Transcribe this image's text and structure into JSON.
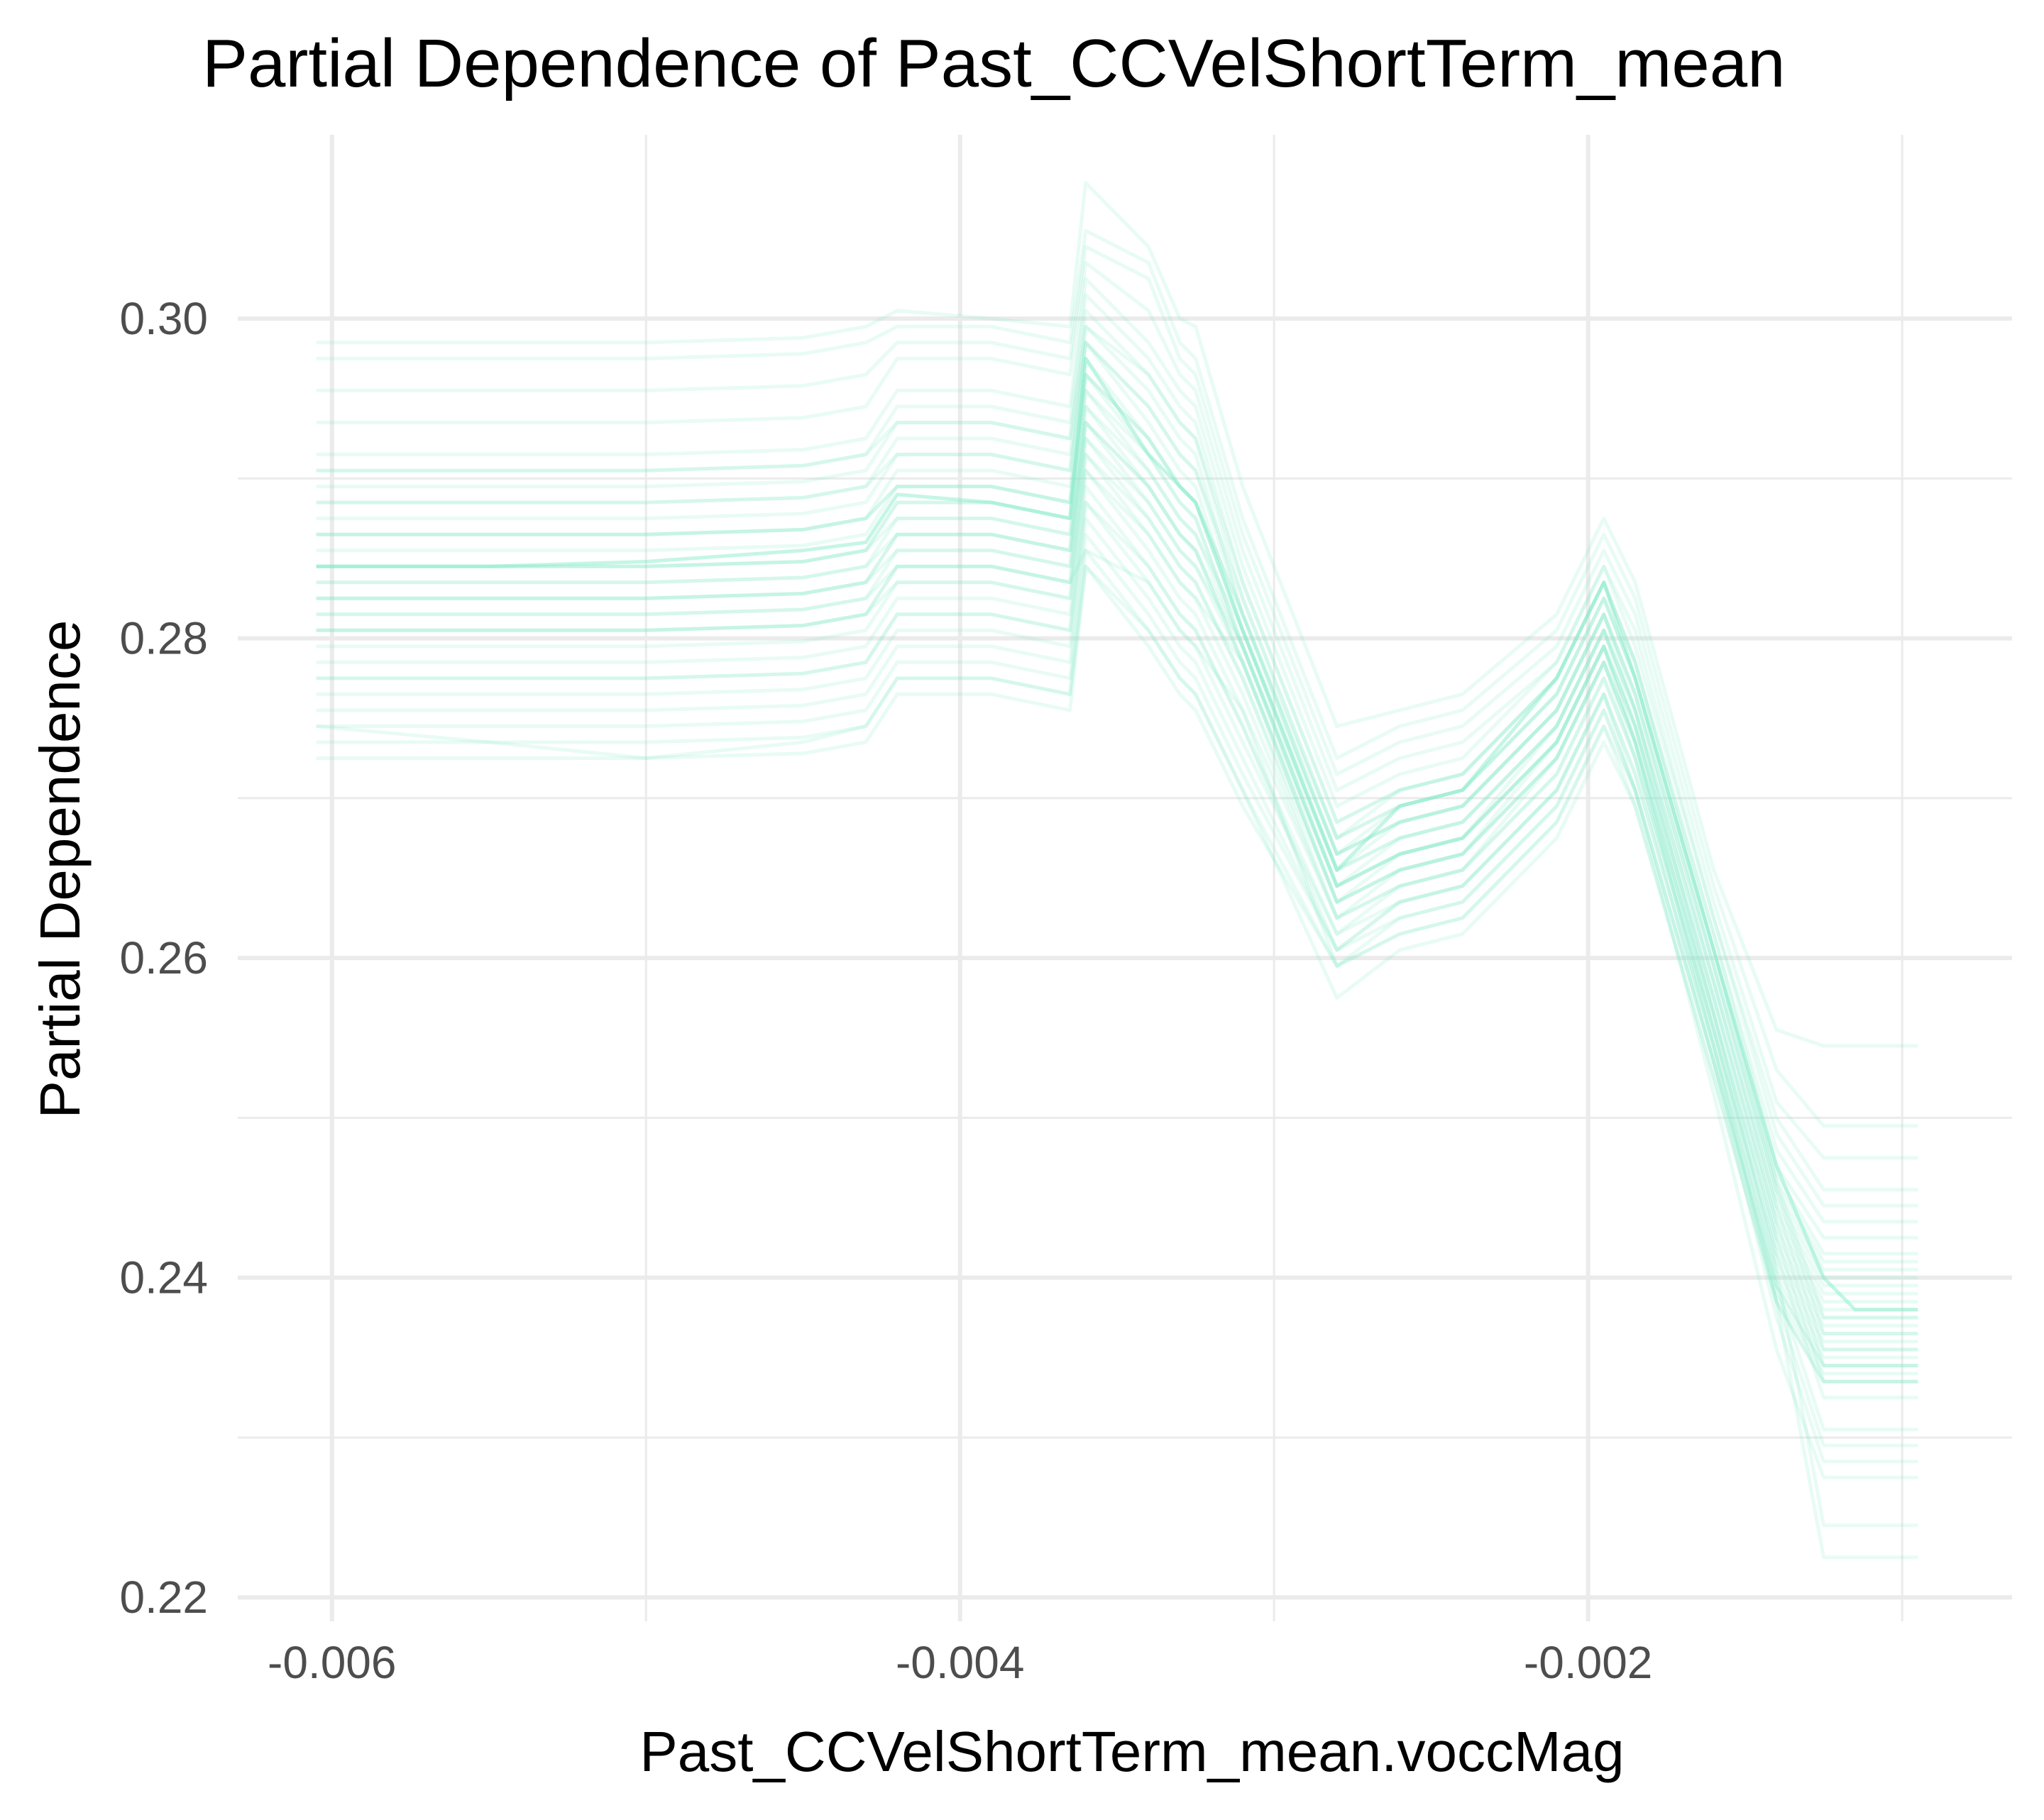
{
  "chart_data": {
    "type": "line",
    "title": "Partial Dependence of Past_CCVelShortTerm_mean",
    "xlabel": "Past_CCVelShortTerm_mean.voccMag",
    "ylabel": "Partial Dependence",
    "xlim": [
      -0.0063,
      -0.00065
    ],
    "ylim": [
      0.2185,
      0.3115
    ],
    "x_ticks": [
      {
        "value": -0.006,
        "label": "-0.006"
      },
      {
        "value": -0.004,
        "label": "-0.004"
      },
      {
        "value": -0.002,
        "label": "-0.002"
      }
    ],
    "x_minor_ticks": [
      -0.005,
      -0.003,
      -0.001
    ],
    "y_ticks": [
      {
        "value": 0.22,
        "label": "0.22"
      },
      {
        "value": 0.24,
        "label": "0.24"
      },
      {
        "value": 0.26,
        "label": "0.26"
      },
      {
        "value": 0.28,
        "label": "0.28"
      },
      {
        "value": 0.3,
        "label": "0.30"
      }
    ],
    "y_minor_ticks": [
      0.23,
      0.25,
      0.27,
      0.29
    ],
    "grid": true,
    "legend": "none",
    "line_color": "#7FEBC6",
    "line_opacity": 0.18,
    "x": [
      -0.00605,
      -0.0055,
      -0.005,
      -0.0045,
      -0.0043,
      -0.0042,
      -0.0039,
      -0.00365,
      -0.0036,
      -0.0034,
      -0.0033,
      -0.00325,
      -0.0031,
      -0.0028,
      -0.0026,
      -0.0024,
      -0.0021,
      -0.00195,
      -0.00185,
      -0.0016,
      -0.0014,
      -0.00125,
      -0.00115,
      -0.00095
    ],
    "average_curve": [
      0.2845,
      0.2845,
      0.2848,
      0.2855,
      0.286,
      0.289,
      0.2885,
      0.2875,
      0.2975,
      0.2915,
      0.2895,
      0.2885,
      0.2805,
      0.2655,
      0.2695,
      0.2705,
      0.2775,
      0.2835,
      0.2775,
      0.2605,
      0.247,
      0.24,
      0.238,
      0.238
    ],
    "series": [
      {
        "values": [
          0.2985,
          0.2985,
          0.2985,
          0.2988,
          0.2995,
          0.3005,
          0.3,
          0.2995,
          0.3085,
          0.3045,
          0.3,
          0.2995,
          0.2895,
          0.2745,
          0.2755,
          0.2765,
          0.2815,
          0.2875,
          0.2835,
          0.2655,
          0.2555,
          0.2545,
          0.2545,
          0.2545
        ]
      },
      {
        "values": [
          0.2975,
          0.2975,
          0.2975,
          0.2978,
          0.2985,
          0.2995,
          0.2995,
          0.2985,
          0.3055,
          0.3035,
          0.2985,
          0.2975,
          0.2875,
          0.2725,
          0.2745,
          0.2755,
          0.2805,
          0.2865,
          0.2825,
          0.2645,
          0.253,
          0.2495,
          0.2495,
          0.2495
        ]
      },
      {
        "values": [
          0.2955,
          0.2955,
          0.2955,
          0.2958,
          0.2965,
          0.2985,
          0.2985,
          0.2975,
          0.3045,
          0.3025,
          0.2975,
          0.2965,
          0.2865,
          0.2715,
          0.2735,
          0.2745,
          0.2795,
          0.2855,
          0.2815,
          0.2635,
          0.251,
          0.2475,
          0.2475,
          0.2475
        ]
      },
      {
        "values": [
          0.2935,
          0.2935,
          0.2935,
          0.2938,
          0.2945,
          0.2975,
          0.2975,
          0.2965,
          0.3035,
          0.3005,
          0.2965,
          0.2955,
          0.2855,
          0.2705,
          0.2725,
          0.2735,
          0.2785,
          0.2845,
          0.2805,
          0.2625,
          0.25,
          0.2455,
          0.2455,
          0.2455
        ]
      },
      {
        "values": [
          0.2915,
          0.2915,
          0.2915,
          0.2918,
          0.2925,
          0.2955,
          0.2955,
          0.2945,
          0.3025,
          0.2985,
          0.2955,
          0.2945,
          0.2845,
          0.2695,
          0.2715,
          0.2725,
          0.2785,
          0.2845,
          0.2795,
          0.2625,
          0.249,
          0.2445,
          0.2445,
          0.2445
        ]
      },
      {
        "values": [
          0.2905,
          0.2905,
          0.2905,
          0.2908,
          0.2915,
          0.2945,
          0.2945,
          0.2935,
          0.3015,
          0.2975,
          0.2945,
          0.2935,
          0.2835,
          0.2685,
          0.2705,
          0.2715,
          0.2775,
          0.2835,
          0.2785,
          0.2615,
          0.248,
          0.2435,
          0.2435,
          0.2435
        ]
      },
      {
        "values": [
          0.2895,
          0.2895,
          0.2895,
          0.2898,
          0.2905,
          0.2935,
          0.2935,
          0.2925,
          0.3005,
          0.2965,
          0.2935,
          0.2925,
          0.2825,
          0.2675,
          0.2705,
          0.2715,
          0.2775,
          0.2835,
          0.2785,
          0.2615,
          0.247,
          0.2425,
          0.2425,
          0.2425
        ]
      },
      {
        "values": [
          0.2885,
          0.2885,
          0.2885,
          0.2888,
          0.2895,
          0.2925,
          0.2925,
          0.2915,
          0.2995,
          0.2955,
          0.2925,
          0.2915,
          0.2815,
          0.2675,
          0.2695,
          0.2705,
          0.2765,
          0.2825,
          0.2775,
          0.2605,
          0.2465,
          0.2415,
          0.2415,
          0.2415
        ]
      },
      {
        "values": [
          0.2875,
          0.2875,
          0.2875,
          0.2878,
          0.2885,
          0.2915,
          0.2915,
          0.2905,
          0.2985,
          0.2945,
          0.2915,
          0.2905,
          0.2815,
          0.2665,
          0.2695,
          0.2705,
          0.2765,
          0.2825,
          0.2775,
          0.2605,
          0.246,
          0.241,
          0.241,
          0.241
        ]
      },
      {
        "values": [
          0.2865,
          0.2865,
          0.2865,
          0.2868,
          0.2875,
          0.2905,
          0.2905,
          0.2895,
          0.2985,
          0.2935,
          0.2905,
          0.2895,
          0.2805,
          0.2665,
          0.2685,
          0.2695,
          0.2755,
          0.2815,
          0.2765,
          0.2595,
          0.2455,
          0.2405,
          0.2405,
          0.2405
        ]
      },
      {
        "values": [
          0.2855,
          0.2855,
          0.2855,
          0.2858,
          0.2865,
          0.2895,
          0.2895,
          0.2885,
          0.2975,
          0.2925,
          0.2895,
          0.2885,
          0.2805,
          0.2655,
          0.2685,
          0.2695,
          0.2755,
          0.2815,
          0.2765,
          0.2595,
          0.245,
          0.24,
          0.24,
          0.24
        ]
      },
      {
        "values": [
          0.2845,
          0.2845,
          0.2845,
          0.2848,
          0.2855,
          0.2885,
          0.2885,
          0.2875,
          0.2965,
          0.2915,
          0.2885,
          0.2875,
          0.2795,
          0.2655,
          0.2675,
          0.2685,
          0.2745,
          0.2805,
          0.2755,
          0.2585,
          0.2445,
          0.2395,
          0.2395,
          0.2395
        ]
      },
      {
        "values": [
          0.2835,
          0.2835,
          0.2835,
          0.2838,
          0.2845,
          0.2875,
          0.2875,
          0.2865,
          0.2955,
          0.2905,
          0.2875,
          0.2865,
          0.2795,
          0.2645,
          0.2675,
          0.2685,
          0.2745,
          0.2805,
          0.2755,
          0.2585,
          0.244,
          0.239,
          0.239,
          0.239
        ]
      },
      {
        "values": [
          0.2825,
          0.2825,
          0.2825,
          0.2828,
          0.2835,
          0.2865,
          0.2865,
          0.2855,
          0.2945,
          0.2895,
          0.2865,
          0.2855,
          0.2785,
          0.2645,
          0.2665,
          0.2675,
          0.2735,
          0.2795,
          0.2745,
          0.2575,
          0.2435,
          0.2385,
          0.2385,
          0.2385
        ]
      },
      {
        "values": [
          0.2815,
          0.2815,
          0.2815,
          0.2818,
          0.2825,
          0.2855,
          0.2855,
          0.2845,
          0.2935,
          0.2885,
          0.2855,
          0.2845,
          0.2785,
          0.2635,
          0.2665,
          0.2675,
          0.2735,
          0.2795,
          0.2745,
          0.2575,
          0.243,
          0.238,
          0.238,
          0.238
        ]
      },
      {
        "values": [
          0.2805,
          0.2805,
          0.2805,
          0.2808,
          0.2815,
          0.2845,
          0.2845,
          0.2835,
          0.2925,
          0.2875,
          0.2845,
          0.2835,
          0.2775,
          0.2635,
          0.2655,
          0.2665,
          0.2725,
          0.2785,
          0.2735,
          0.2565,
          0.2425,
          0.2375,
          0.2375,
          0.2375
        ]
      },
      {
        "values": [
          0.2795,
          0.2795,
          0.2795,
          0.2798,
          0.2805,
          0.2835,
          0.2835,
          0.2825,
          0.2915,
          0.2865,
          0.2835,
          0.2825,
          0.2765,
          0.2625,
          0.2655,
          0.2665,
          0.2725,
          0.2785,
          0.2735,
          0.2565,
          0.242,
          0.237,
          0.237,
          0.237
        ]
      },
      {
        "values": [
          0.2785,
          0.2785,
          0.2785,
          0.2788,
          0.2795,
          0.2825,
          0.2825,
          0.2815,
          0.2905,
          0.2855,
          0.2825,
          0.2815,
          0.2755,
          0.2625,
          0.2645,
          0.2655,
          0.2715,
          0.2775,
          0.2725,
          0.2555,
          0.2415,
          0.2365,
          0.2365,
          0.2365
        ]
      },
      {
        "values": [
          0.2775,
          0.2775,
          0.2775,
          0.2778,
          0.2785,
          0.2815,
          0.2815,
          0.2805,
          0.2895,
          0.2845,
          0.2815,
          0.2805,
          0.2745,
          0.2615,
          0.2645,
          0.2655,
          0.2715,
          0.2775,
          0.2725,
          0.2555,
          0.241,
          0.236,
          0.236,
          0.236
        ]
      },
      {
        "values": [
          0.2765,
          0.2765,
          0.2765,
          0.2768,
          0.2775,
          0.2805,
          0.2805,
          0.2795,
          0.2885,
          0.2835,
          0.2805,
          0.2795,
          0.2735,
          0.2615,
          0.2635,
          0.2645,
          0.2705,
          0.2765,
          0.2715,
          0.2545,
          0.2405,
          0.2355,
          0.2355,
          0.2355
        ]
      },
      {
        "values": [
          0.2755,
          0.2755,
          0.2755,
          0.2758,
          0.2765,
          0.2795,
          0.2795,
          0.2785,
          0.2875,
          0.2825,
          0.2795,
          0.2785,
          0.2725,
          0.2605,
          0.2635,
          0.2645,
          0.2705,
          0.2765,
          0.2715,
          0.2545,
          0.24,
          0.235,
          0.235,
          0.235
        ]
      },
      {
        "values": [
          0.2745,
          0.2745,
          0.2745,
          0.2748,
          0.2755,
          0.2785,
          0.2785,
          0.2775,
          0.2865,
          0.2815,
          0.2785,
          0.2775,
          0.2715,
          0.2605,
          0.2625,
          0.2635,
          0.2695,
          0.2755,
          0.2705,
          0.2535,
          0.2395,
          0.2345,
          0.2345,
          0.2345
        ]
      },
      {
        "values": [
          0.2735,
          0.2735,
          0.2735,
          0.2738,
          0.2745,
          0.2775,
          0.2775,
          0.2765,
          0.2855,
          0.2805,
          0.2775,
          0.2765,
          0.2705,
          0.2595,
          0.2625,
          0.2635,
          0.2695,
          0.2755,
          0.2705,
          0.2535,
          0.239,
          0.234,
          0.234,
          0.234
        ]
      },
      {
        "values": [
          0.2725,
          0.2725,
          0.2725,
          0.2728,
          0.2735,
          0.2765,
          0.2765,
          0.2755,
          0.2845,
          0.2795,
          0.2765,
          0.2755,
          0.2695,
          0.2595,
          0.2615,
          0.2625,
          0.2685,
          0.2745,
          0.2695,
          0.2525,
          0.2385,
          0.2335,
          0.2335,
          0.2335
        ]
      },
      {
        "values": [
          0.2905,
          0.2905,
          0.2905,
          0.2908,
          0.2915,
          0.2935,
          0.2935,
          0.2925,
          0.2995,
          0.2965,
          0.2935,
          0.2925,
          0.2835,
          0.2685,
          0.2705,
          0.2715,
          0.2775,
          0.2835,
          0.2785,
          0.2605,
          0.246,
          0.2375,
          0.2375,
          0.2375
        ]
      },
      {
        "values": [
          0.2885,
          0.2885,
          0.2885,
          0.2888,
          0.2895,
          0.2915,
          0.2915,
          0.2905,
          0.2985,
          0.2945,
          0.2915,
          0.2905,
          0.2825,
          0.2675,
          0.2695,
          0.2705,
          0.2765,
          0.2825,
          0.2775,
          0.2595,
          0.2455,
          0.2365,
          0.2365,
          0.2365
        ]
      },
      {
        "values": [
          0.2865,
          0.2865,
          0.2865,
          0.2868,
          0.2875,
          0.2895,
          0.2895,
          0.2885,
          0.2965,
          0.2925,
          0.2895,
          0.2885,
          0.2815,
          0.2665,
          0.2685,
          0.2695,
          0.2755,
          0.2815,
          0.2765,
          0.2585,
          0.2445,
          0.2355,
          0.2355,
          0.2355
        ]
      },
      {
        "values": [
          0.2845,
          0.2845,
          0.2845,
          0.2848,
          0.2855,
          0.2875,
          0.2875,
          0.2865,
          0.2945,
          0.2905,
          0.2875,
          0.2865,
          0.2805,
          0.2655,
          0.2675,
          0.2685,
          0.2745,
          0.2805,
          0.2755,
          0.2575,
          0.2435,
          0.2345,
          0.2345,
          0.2345
        ]
      },
      {
        "values": [
          0.2825,
          0.2825,
          0.2825,
          0.2828,
          0.2835,
          0.2855,
          0.2855,
          0.2845,
          0.2925,
          0.2885,
          0.2855,
          0.2845,
          0.2795,
          0.2645,
          0.2665,
          0.2675,
          0.2735,
          0.2795,
          0.2745,
          0.2565,
          0.2425,
          0.2335,
          0.2335,
          0.2335
        ]
      },
      {
        "values": [
          0.2805,
          0.2805,
          0.2805,
          0.2808,
          0.2815,
          0.2835,
          0.2835,
          0.2825,
          0.2905,
          0.2865,
          0.2835,
          0.2825,
          0.2785,
          0.2635,
          0.2655,
          0.2665,
          0.2725,
          0.2785,
          0.2735,
          0.2555,
          0.2415,
          0.2325,
          0.2325,
          0.2325
        ]
      },
      {
        "values": [
          0.2845,
          0.2845,
          0.2845,
          0.2848,
          0.2855,
          0.2885,
          0.2885,
          0.2875,
          0.2955,
          0.2915,
          0.2885,
          0.2875,
          0.2795,
          0.2645,
          0.2665,
          0.2675,
          0.2745,
          0.2805,
          0.2745,
          0.2555,
          0.2395,
          0.2305,
          0.2305,
          0.2305
        ]
      },
      {
        "values": [
          0.2825,
          0.2825,
          0.2825,
          0.2828,
          0.2835,
          0.2865,
          0.2865,
          0.2855,
          0.2935,
          0.2895,
          0.2865,
          0.2855,
          0.2785,
          0.2635,
          0.2655,
          0.2665,
          0.2735,
          0.2795,
          0.2735,
          0.2545,
          0.2385,
          0.2295,
          0.2295,
          0.2295
        ]
      },
      {
        "values": [
          0.2805,
          0.2805,
          0.2805,
          0.2808,
          0.2815,
          0.2845,
          0.2845,
          0.2835,
          0.2915,
          0.2875,
          0.2845,
          0.2835,
          0.2775,
          0.2625,
          0.2645,
          0.2655,
          0.2725,
          0.2785,
          0.2725,
          0.2535,
          0.2375,
          0.2285,
          0.2285,
          0.2285
        ]
      },
      {
        "values": [
          0.2775,
          0.2775,
          0.2775,
          0.2778,
          0.2785,
          0.2815,
          0.2815,
          0.2805,
          0.2885,
          0.2845,
          0.2815,
          0.2805,
          0.2745,
          0.2605,
          0.2635,
          0.2645,
          0.2705,
          0.2765,
          0.2705,
          0.2515,
          0.2355,
          0.2275,
          0.2275,
          0.2275
        ]
      },
      {
        "values": [
          0.2865,
          0.2865,
          0.2865,
          0.2868,
          0.2875,
          0.2895,
          0.2895,
          0.2885,
          0.2965,
          0.2925,
          0.2895,
          0.2885,
          0.2815,
          0.2665,
          0.2685,
          0.2695,
          0.2755,
          0.2815,
          0.2755,
          0.2565,
          0.2405,
          0.2245,
          0.2245,
          0.2245
        ]
      },
      {
        "values": [
          0.2835,
          0.2835,
          0.2835,
          0.2838,
          0.2845,
          0.2865,
          0.2865,
          0.2855,
          0.2935,
          0.2895,
          0.2865,
          0.2855,
          0.2795,
          0.2645,
          0.2665,
          0.2675,
          0.2735,
          0.2795,
          0.2735,
          0.2545,
          0.2385,
          0.2225,
          0.2225,
          0.2225
        ]
      },
      {
        "values": [
          0.2745,
          0.2735,
          0.2725,
          0.2735,
          0.2745,
          0.2775,
          0.2775,
          0.2765,
          0.2845,
          0.2805,
          0.2775,
          0.2765,
          0.2705,
          0.2575,
          0.2605,
          0.2615,
          0.2675,
          0.2735,
          0.2695,
          0.2525,
          0.2385,
          0.2335,
          0.2335,
          0.2335
        ]
      },
      {
        "values": [
          0.2815,
          0.2815,
          0.2815,
          0.2818,
          0.2825,
          0.2845,
          0.2845,
          0.2835,
          0.2855,
          0.2835,
          0.2805,
          0.2795,
          0.2755,
          0.2595,
          0.2615,
          0.2625,
          0.2685,
          0.2745,
          0.2705,
          0.2535,
          0.2395,
          0.2345,
          0.2345,
          0.2345
        ]
      }
    ]
  }
}
